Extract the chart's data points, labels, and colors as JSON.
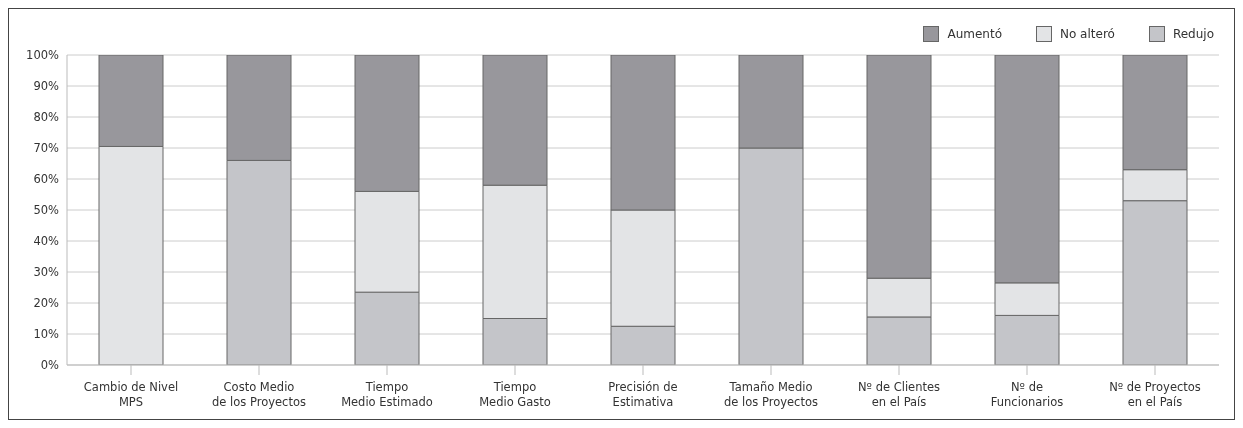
{
  "chart_data": {
    "type": "bar",
    "stacked": true,
    "categories": [
      "Cambio de Nivel\nMPS",
      "Costo Medio\nde los Proyectos",
      "Tiempo\nMedio Estimado",
      "Tiempo\nMedio Gasto",
      "Precisión de\nEstimativa",
      "Tamaño Medio\nde los Proyectos",
      "Nº de Clientes\nen el País",
      "Nº de\nFuncionarios",
      "Nº de Proyectos\nen el País"
    ],
    "series": [
      {
        "name": "Redujo",
        "color": "#c4c5c9",
        "values": [
          0,
          66,
          23.5,
          15,
          12.5,
          70,
          15.5,
          16,
          53
        ]
      },
      {
        "name": "No alteró",
        "color": "#e3e4e6",
        "values": [
          70.5,
          0,
          32.5,
          43,
          37.5,
          0,
          12.5,
          10.5,
          10
        ]
      },
      {
        "name": "Aumentó",
        "color": "#98979c",
        "values": [
          29.5,
          34,
          44,
          42,
          50,
          30,
          72,
          73.5,
          37
        ]
      }
    ],
    "ylim": [
      0,
      100
    ],
    "yticks": [
      {
        "value": 0,
        "label": "0%"
      },
      {
        "value": 10,
        "label": "10%"
      },
      {
        "value": 20,
        "label": "20%"
      },
      {
        "value": 30,
        "label": "30%"
      },
      {
        "value": 40,
        "label": "40%"
      },
      {
        "value": 50,
        "label": "50%"
      },
      {
        "value": 60,
        "label": "60%"
      },
      {
        "value": 70,
        "label": "70%"
      },
      {
        "value": 80,
        "label": "80%"
      },
      {
        "value": 90,
        "label": "90%"
      },
      {
        "value": 100,
        "label": "100%"
      }
    ],
    "grid": "y",
    "legend": "top right"
  }
}
